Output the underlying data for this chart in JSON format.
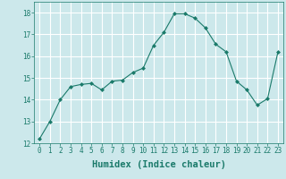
{
  "x": [
    0,
    1,
    2,
    3,
    4,
    5,
    6,
    7,
    8,
    9,
    10,
    11,
    12,
    13,
    14,
    15,
    16,
    17,
    18,
    19,
    20,
    21,
    22,
    23
  ],
  "y": [
    12.2,
    13.0,
    14.0,
    14.6,
    14.7,
    14.75,
    14.45,
    14.85,
    14.9,
    15.25,
    15.45,
    16.5,
    17.1,
    17.95,
    17.95,
    17.75,
    17.3,
    16.55,
    16.2,
    14.85,
    14.45,
    13.75,
    14.05,
    16.2
  ],
  "line_color": "#1a7a6a",
  "marker": "D",
  "marker_size": 2,
  "xlabel": "Humidex (Indice chaleur)",
  "ylabel": "",
  "ylim": [
    12,
    18.5
  ],
  "xlim": [
    -0.5,
    23.5
  ],
  "yticks": [
    12,
    13,
    14,
    15,
    16,
    17,
    18
  ],
  "xticks": [
    0,
    1,
    2,
    3,
    4,
    5,
    6,
    7,
    8,
    9,
    10,
    11,
    12,
    13,
    14,
    15,
    16,
    17,
    18,
    19,
    20,
    21,
    22,
    23
  ],
  "bg_color": "#cce8eb",
  "grid_color": "#ffffff",
  "tick_color": "#1a7a6a",
  "label_color": "#1a7a6a",
  "font_size_tick": 5.5,
  "font_size_label": 7.5
}
